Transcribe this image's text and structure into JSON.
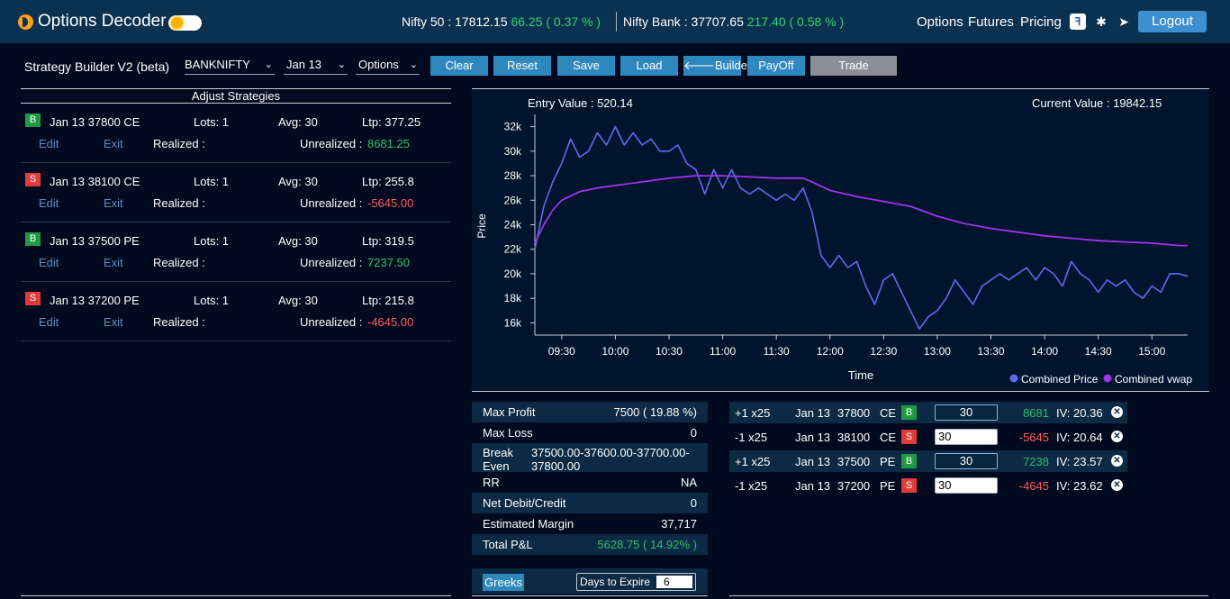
{
  "app": {
    "brand": "Options Decoder",
    "logo_icon": "half-moon-logo-icon",
    "theme_icon": "sun-icon"
  },
  "ticker": [
    {
      "name": "Nifty 50 :",
      "value": "17812.15",
      "change": "66.25 ( 0.37 % )"
    },
    {
      "name": "Nifty Bank :",
      "value": "37707.65",
      "change": "217.40 ( 0.58 % )"
    }
  ],
  "nav": {
    "options": "Options",
    "futures": "Futures",
    "pricing": "Pricing",
    "logout": "Logout",
    "icons": [
      "fb-brand-icon",
      "bug-icon",
      "telegram-icon"
    ]
  },
  "toolbar": {
    "title": "Strategy Builder V2 (beta)",
    "symbol": "BANKNIFTY",
    "expiry": "Jan 13",
    "instrument": "Options",
    "clear": "Clear",
    "reset": "Reset",
    "save": "Save",
    "load": "Load",
    "builder": "Builder",
    "payoff": "PayOff",
    "trade": "Trade"
  },
  "adjust": {
    "heading": "Adjust Strategies",
    "edit_label": "Edit",
    "exit_label": "Exit",
    "realized_label": "Realized :",
    "unrealized_label": "Unrealized :",
    "legs": [
      {
        "side": "B",
        "contract": "Jan 13 37800 CE",
        "lots": "Lots: 1",
        "avg": "Avg: 30",
        "ltp": "Ltp: 377.25",
        "unrealized": "8681.25",
        "sign": "pos"
      },
      {
        "side": "S",
        "contract": "Jan 13 38100 CE",
        "lots": "Lots: 1",
        "avg": "Avg: 30",
        "ltp": "Ltp: 255.8",
        "unrealized": "-5645.00",
        "sign": "neg"
      },
      {
        "side": "B",
        "contract": "Jan 13 37500 PE",
        "lots": "Lots: 1",
        "avg": "Avg: 30",
        "ltp": "Ltp: 319.5",
        "unrealized": "7237.50",
        "sign": "pos"
      },
      {
        "side": "S",
        "contract": "Jan 13 37200 PE",
        "lots": "Lots: 1",
        "avg": "Avg: 30",
        "ltp": "Ltp: 215.8",
        "unrealized": "-4645.00",
        "sign": "neg"
      }
    ]
  },
  "chart": {
    "entry_value": "Entry Value : 520.14",
    "current_value": "Current Value : 19842.15"
  },
  "chart_data": {
    "type": "line",
    "xlabel": "Time",
    "ylabel": "Price",
    "x_ticks": [
      "09:30",
      "10:00",
      "10:30",
      "11:00",
      "11:30",
      "12:00",
      "12:30",
      "13:00",
      "13:30",
      "14:00",
      "14:30",
      "15:00"
    ],
    "y_ticks": [
      "16k",
      "18k",
      "20k",
      "22k",
      "24k",
      "26k",
      "28k",
      "30k",
      "32k"
    ],
    "ylim": [
      15000,
      33000
    ],
    "xlim": [
      "09:15",
      "15:20"
    ],
    "legend_position": "bottom-right",
    "colors": {
      "combined_price": "#5b6cf0",
      "combined_vwap": "#a034e8"
    },
    "series": [
      {
        "name": "Combined Price",
        "x": [
          "09:15",
          "09:20",
          "09:25",
          "09:30",
          "09:35",
          "09:40",
          "09:45",
          "09:50",
          "09:55",
          "10:00",
          "10:05",
          "10:10",
          "10:15",
          "10:20",
          "10:25",
          "10:30",
          "10:35",
          "10:40",
          "10:45",
          "10:50",
          "10:55",
          "11:00",
          "11:05",
          "11:10",
          "11:15",
          "11:20",
          "11:25",
          "11:30",
          "11:35",
          "11:40",
          "11:45",
          "11:50",
          "11:55",
          "12:00",
          "12:05",
          "12:10",
          "12:15",
          "12:20",
          "12:25",
          "12:30",
          "12:35",
          "12:40",
          "12:45",
          "12:50",
          "12:55",
          "13:00",
          "13:05",
          "13:10",
          "13:15",
          "13:20",
          "13:25",
          "13:30",
          "13:35",
          "13:40",
          "13:45",
          "13:50",
          "13:55",
          "14:00",
          "14:05",
          "14:10",
          "14:15",
          "14:20",
          "14:25",
          "14:30",
          "14:35",
          "14:40",
          "14:45",
          "14:50",
          "14:55",
          "15:00",
          "15:05",
          "15:10",
          "15:15",
          "15:20"
        ],
        "values": [
          22000,
          25500,
          27500,
          29000,
          31000,
          29500,
          30000,
          31500,
          30500,
          32000,
          30500,
          31500,
          30500,
          31000,
          30000,
          30000,
          30500,
          29000,
          28500,
          26500,
          28500,
          27000,
          28500,
          27000,
          26500,
          27000,
          26500,
          26000,
          26500,
          26000,
          27000,
          25000,
          21500,
          20500,
          21500,
          20500,
          21000,
          19000,
          17500,
          19500,
          20000,
          18500,
          17000,
          15500,
          16500,
          17000,
          18000,
          19500,
          18500,
          17500,
          19000,
          19500,
          20000,
          19500,
          20000,
          20500,
          19500,
          20500,
          20000,
          19000,
          21000,
          20000,
          19500,
          18500,
          19500,
          19000,
          19500,
          18500,
          18000,
          19000,
          18500,
          20000,
          20000,
          19800
        ]
      },
      {
        "name": "Combined vwap",
        "x": [
          "09:15",
          "09:20",
          "09:25",
          "09:30",
          "09:40",
          "09:50",
          "10:00",
          "10:15",
          "10:30",
          "10:45",
          "11:00",
          "11:15",
          "11:30",
          "11:45",
          "11:50",
          "12:00",
          "12:15",
          "12:30",
          "12:45",
          "13:00",
          "13:15",
          "13:30",
          "13:45",
          "14:00",
          "14:15",
          "14:30",
          "14:45",
          "15:00",
          "15:15",
          "15:20"
        ],
        "values": [
          22500,
          24000,
          25200,
          26000,
          26700,
          27000,
          27200,
          27500,
          27800,
          28000,
          28000,
          27900,
          27800,
          27800,
          27500,
          26800,
          26300,
          25900,
          25500,
          24700,
          24100,
          23700,
          23400,
          23100,
          22900,
          22700,
          22600,
          22500,
          22300,
          22300
        ]
      }
    ]
  },
  "summary": {
    "rows": [
      {
        "k": "Max Profit",
        "v": "7500 ( 19.88 %)",
        "cls": ""
      },
      {
        "k": "Max Loss",
        "v": "0",
        "cls": ""
      },
      {
        "k": "Break Even",
        "v": "37500.00-37600.00-37700.00-37800.00",
        "cls": ""
      },
      {
        "k": "RR",
        "v": "NA",
        "cls": ""
      },
      {
        "k": "Net Debit/Credit",
        "v": "0",
        "cls": ""
      },
      {
        "k": "Estimated Margin",
        "v": "37,717",
        "cls": ""
      },
      {
        "k": "Total P&L",
        "v": "5628.75 ( 14.92% )",
        "cls": "pos"
      }
    ],
    "greeks": "Greeks",
    "days_to_expire_label": "Days to Expire",
    "days_to_expire": "6"
  },
  "positions": [
    {
      "qty": "+1 x25",
      "exp": "Jan 13",
      "strike": "37800",
      "type": "CE",
      "side": "B",
      "price": "30",
      "editable": false,
      "pnl": "8681",
      "sign": "pos",
      "iv": "IV: 20.36"
    },
    {
      "qty": "-1 x25",
      "exp": "Jan 13",
      "strike": "38100",
      "type": "CE",
      "side": "S",
      "price": "30",
      "editable": true,
      "pnl": "-5645",
      "sign": "neg",
      "iv": "IV: 20.64"
    },
    {
      "qty": "+1 x25",
      "exp": "Jan 13",
      "strike": "37500",
      "type": "PE",
      "side": "B",
      "price": "30",
      "editable": false,
      "pnl": "7238",
      "sign": "pos",
      "iv": "IV: 23.57"
    },
    {
      "qty": "-1 x25",
      "exp": "Jan 13",
      "strike": "37200",
      "type": "PE",
      "side": "S",
      "price": "30",
      "editable": true,
      "pnl": "-4645",
      "sign": "neg",
      "iv": "IV: 23.62"
    }
  ]
}
